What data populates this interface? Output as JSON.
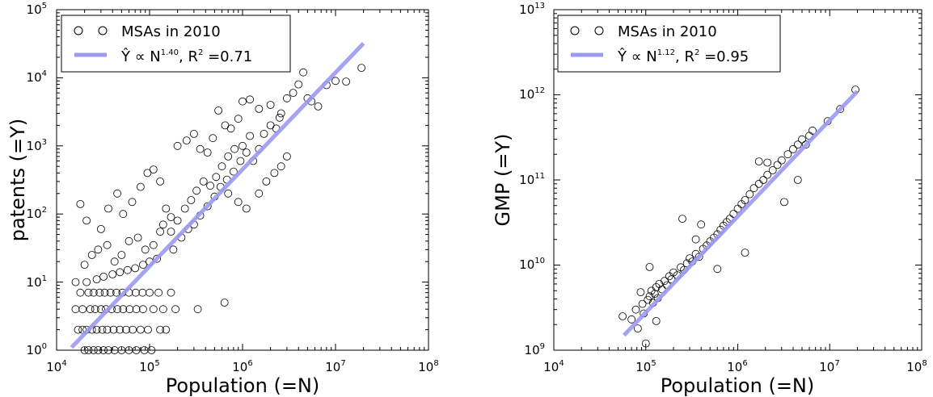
{
  "chart_data": [
    {
      "type": "scatter",
      "xlabel": "Population (=N)",
      "ylabel": "patents (=Y)",
      "xscale": "log",
      "yscale": "log",
      "xlim": [
        10000,
        100000000
      ],
      "ylim": [
        1,
        100000
      ],
      "xticks": [
        {
          "base": "10",
          "exp": "4"
        },
        {
          "base": "10",
          "exp": "5"
        },
        {
          "base": "10",
          "exp": "6"
        },
        {
          "base": "10",
          "exp": "7"
        },
        {
          "base": "10",
          "exp": "8"
        }
      ],
      "yticks": [
        {
          "base": "10",
          "exp": "0"
        },
        {
          "base": "10",
          "exp": "1"
        },
        {
          "base": "10",
          "exp": "2"
        },
        {
          "base": "10",
          "exp": "3"
        },
        {
          "base": "10",
          "exp": "4"
        },
        {
          "base": "10",
          "exp": "5"
        }
      ],
      "grid": false,
      "legend_position": "top-left",
      "legend": {
        "scatter_label": "MSAs in 2010",
        "fit_label": "Ŷ ∝ N",
        "fit_exponent": "1.40",
        "fit_r2_label": ", R",
        "fit_r2_sup": "2",
        "fit_r2_value": " =0.71"
      },
      "fit": {
        "exponent": 1.4,
        "r2": 0.71,
        "x_range": [
          14500,
          20000000
        ],
        "y_range": [
          1.1,
          32000
        ]
      },
      "point_style": {
        "marker": "open-circle",
        "edge_color": "#000000"
      },
      "fit_color": "#9a9af2",
      "points": [
        [
          20000,
          1
        ],
        [
          22000,
          1
        ],
        [
          25000,
          1
        ],
        [
          28000,
          1
        ],
        [
          32000,
          1
        ],
        [
          36000,
          1
        ],
        [
          42000,
          1
        ],
        [
          50000,
          1
        ],
        [
          60000,
          1
        ],
        [
          72000,
          1
        ],
        [
          88000,
          1
        ],
        [
          105000,
          1
        ],
        [
          17000,
          2
        ],
        [
          19000,
          2
        ],
        [
          21000,
          2
        ],
        [
          24000,
          2
        ],
        [
          27000,
          2
        ],
        [
          31000,
          2
        ],
        [
          35000,
          2
        ],
        [
          41000,
          2
        ],
        [
          48000,
          2
        ],
        [
          56000,
          2
        ],
        [
          66000,
          2
        ],
        [
          80000,
          2
        ],
        [
          96000,
          2
        ],
        [
          130000,
          2
        ],
        [
          150000,
          2
        ],
        [
          16000,
          4
        ],
        [
          19000,
          4
        ],
        [
          23000,
          4
        ],
        [
          26000,
          4
        ],
        [
          30000,
          4
        ],
        [
          34000,
          4
        ],
        [
          39000,
          4
        ],
        [
          45000,
          4
        ],
        [
          52000,
          4
        ],
        [
          61000,
          4
        ],
        [
          72000,
          4
        ],
        [
          85000,
          4
        ],
        [
          110000,
          4
        ],
        [
          140000,
          4
        ],
        [
          190000,
          4
        ],
        [
          330000,
          4
        ],
        [
          18000,
          7
        ],
        [
          22000,
          7
        ],
        [
          25000,
          7
        ],
        [
          29000,
          7
        ],
        [
          33000,
          7
        ],
        [
          38000,
          7
        ],
        [
          44000,
          7
        ],
        [
          51000,
          7
        ],
        [
          60000,
          7
        ],
        [
          71000,
          7
        ],
        [
          84000,
          7
        ],
        [
          100000,
          7
        ],
        [
          125000,
          7
        ],
        [
          170000,
          7
        ],
        [
          16000,
          10
        ],
        [
          21000,
          10
        ],
        [
          27000,
          11
        ],
        [
          32000,
          12
        ],
        [
          40000,
          13
        ],
        [
          48000,
          14
        ],
        [
          58000,
          15
        ],
        [
          70000,
          16
        ],
        [
          85000,
          18
        ],
        [
          100000,
          20
        ],
        [
          120000,
          22
        ],
        [
          20000,
          18
        ],
        [
          24000,
          25
        ],
        [
          28000,
          30
        ],
        [
          35000,
          35
        ],
        [
          42000,
          20
        ],
        [
          50000,
          25
        ],
        [
          60000,
          40
        ],
        [
          75000,
          45
        ],
        [
          90000,
          30
        ],
        [
          110000,
          35
        ],
        [
          130000,
          55
        ],
        [
          18000,
          140
        ],
        [
          21000,
          80
        ],
        [
          30000,
          60
        ],
        [
          36000,
          120
        ],
        [
          45000,
          200
        ],
        [
          52000,
          100
        ],
        [
          65000,
          150
        ],
        [
          80000,
          250
        ],
        [
          95000,
          400
        ],
        [
          110000,
          450
        ],
        [
          130000,
          300
        ],
        [
          150000,
          120
        ],
        [
          170000,
          90
        ],
        [
          140000,
          70
        ],
        [
          170000,
          55
        ],
        [
          200000,
          80
        ],
        [
          240000,
          120
        ],
        [
          280000,
          160
        ],
        [
          320000,
          220
        ],
        [
          380000,
          300
        ],
        [
          450000,
          260
        ],
        [
          520000,
          350
        ],
        [
          600000,
          500
        ],
        [
          700000,
          700
        ],
        [
          820000,
          900
        ],
        [
          180000,
          30
        ],
        [
          220000,
          45
        ],
        [
          260000,
          60
        ],
        [
          300000,
          70
        ],
        [
          350000,
          95
        ],
        [
          420000,
          130
        ],
        [
          500000,
          180
        ],
        [
          580000,
          250
        ],
        [
          680000,
          320
        ],
        [
          800000,
          420
        ],
        [
          950000,
          600
        ],
        [
          200000,
          1000
        ],
        [
          250000,
          1200
        ],
        [
          300000,
          1500
        ],
        [
          350000,
          900
        ],
        [
          420000,
          800
        ],
        [
          480000,
          1300
        ],
        [
          550000,
          3300
        ],
        [
          650000,
          2000
        ],
        [
          750000,
          1800
        ],
        [
          900000,
          2500
        ],
        [
          1000000,
          1000
        ],
        [
          1100000,
          800
        ],
        [
          1200000,
          1400
        ],
        [
          1300000,
          600
        ],
        [
          1500000,
          900
        ],
        [
          1700000,
          1500
        ],
        [
          2000000,
          2000
        ],
        [
          2300000,
          1800
        ],
        [
          2600000,
          3000
        ],
        [
          1000000,
          4500
        ],
        [
          1200000,
          4800
        ],
        [
          1500000,
          3500
        ],
        [
          2000000,
          4000
        ],
        [
          2500000,
          2600
        ],
        [
          3000000,
          5000
        ],
        [
          3500000,
          6000
        ],
        [
          4000000,
          8000
        ],
        [
          4500000,
          12000
        ],
        [
          5000000,
          5000
        ],
        [
          1500000,
          200
        ],
        [
          1800000,
          300
        ],
        [
          2200000,
          400
        ],
        [
          2600000,
          500
        ],
        [
          3000000,
          700
        ],
        [
          700000,
          200
        ],
        [
          900000,
          150
        ],
        [
          1100000,
          120
        ],
        [
          640000,
          5
        ],
        [
          5500000,
          4500
        ],
        [
          6500000,
          3800
        ],
        [
          8000000,
          7800
        ],
        [
          10000000,
          9000
        ],
        [
          13000000,
          8800
        ],
        [
          19000000,
          14000
        ]
      ]
    },
    {
      "type": "scatter",
      "xlabel": "Population (=N)",
      "ylabel": "GMP (=Y)",
      "xscale": "log",
      "yscale": "log",
      "xlim": [
        10000,
        100000000
      ],
      "ylim": [
        1000000000,
        10000000000000
      ],
      "xticks": [
        {
          "base": "10",
          "exp": "4"
        },
        {
          "base": "10",
          "exp": "5"
        },
        {
          "base": "10",
          "exp": "6"
        },
        {
          "base": "10",
          "exp": "7"
        },
        {
          "base": "10",
          "exp": "8"
        }
      ],
      "yticks": [
        {
          "base": "10",
          "exp": "9"
        },
        {
          "base": "10",
          "exp": "10"
        },
        {
          "base": "10",
          "exp": "11"
        },
        {
          "base": "10",
          "exp": "12"
        },
        {
          "base": "10",
          "exp": "13"
        }
      ],
      "grid": false,
      "legend_position": "top-left",
      "legend": {
        "scatter_label": "MSAs in 2010",
        "fit_label": "Ŷ ∝ N",
        "fit_exponent": "1.12",
        "fit_r2_label": ", R",
        "fit_r2_sup": "2",
        "fit_r2_value": " =0.95"
      },
      "fit": {
        "exponent": 1.12,
        "r2": 0.95,
        "x_range": [
          58000,
          20000000
        ],
        "y_range": [
          1500000000,
          1100000000000
        ]
      },
      "point_style": {
        "marker": "open-circle",
        "edge_color": "#000000"
      },
      "fit_color": "#9a9af2",
      "points": [
        [
          56000,
          2500000000
        ],
        [
          70000,
          2300000000
        ],
        [
          78000,
          3000000000
        ],
        [
          82000,
          1800000000
        ],
        [
          88000,
          4800000000
        ],
        [
          92000,
          3500000000
        ],
        [
          95000,
          2700000000
        ],
        [
          100000,
          1200000000
        ],
        [
          105000,
          3900000000
        ],
        [
          110000,
          4300000000
        ],
        [
          115000,
          5000000000
        ],
        [
          120000,
          3600000000
        ],
        [
          125000,
          4600000000
        ],
        [
          130000,
          5500000000
        ],
        [
          135000,
          4100000000
        ],
        [
          140000,
          6000000000
        ],
        [
          150000,
          5200000000
        ],
        [
          160000,
          6500000000
        ],
        [
          170000,
          5800000000
        ],
        [
          180000,
          7400000000
        ],
        [
          190000,
          6800000000
        ],
        [
          200000,
          8200000000
        ],
        [
          220000,
          7600000000
        ],
        [
          240000,
          9400000000
        ],
        [
          260000,
          8800000000
        ],
        [
          280000,
          10500000000
        ],
        [
          300000,
          12000000000
        ],
        [
          320000,
          11000000000
        ],
        [
          350000,
          13500000000
        ],
        [
          380000,
          12500000000
        ],
        [
          420000,
          15500000000
        ],
        [
          460000,
          17000000000
        ],
        [
          500000,
          19000000000
        ],
        [
          550000,
          21000000000
        ],
        [
          600000,
          23000000000
        ],
        [
          650000,
          26000000000
        ],
        [
          700000,
          29000000000
        ],
        [
          760000,
          32000000000
        ],
        [
          820000,
          35000000000
        ],
        [
          900000,
          40000000000
        ],
        [
          1000000,
          46000000000
        ],
        [
          1100000,
          52000000000
        ],
        [
          1200000,
          58000000000
        ],
        [
          1350000,
          68000000000
        ],
        [
          1500000,
          80000000000
        ],
        [
          1700000,
          90000000000
        ],
        [
          1900000,
          100000000000
        ],
        [
          2100000,
          115000000000
        ],
        [
          2400000,
          130000000000
        ],
        [
          2700000,
          150000000000
        ],
        [
          3000000,
          170000000000
        ],
        [
          3500000,
          200000000000
        ],
        [
          4000000,
          230000000000
        ],
        [
          4500000,
          260000000000
        ],
        [
          5000000,
          300000000000
        ],
        [
          5500000,
          260000000000
        ],
        [
          6000000,
          330000000000
        ],
        [
          6500000,
          380000000000
        ],
        [
          9500000,
          490000000000
        ],
        [
          13000000,
          680000000000
        ],
        [
          19000000,
          1150000000000
        ],
        [
          1700000,
          165000000000
        ],
        [
          2100000,
          160000000000
        ],
        [
          400000,
          30000000000
        ],
        [
          350000,
          20000000000
        ],
        [
          250000,
          35000000000
        ],
        [
          1200000,
          14000000000
        ],
        [
          3200000,
          55000000000
        ],
        [
          4500000,
          100000000000
        ],
        [
          600000,
          9000000000
        ],
        [
          110000,
          9500000000
        ],
        [
          130000,
          2200000000
        ]
      ]
    }
  ]
}
